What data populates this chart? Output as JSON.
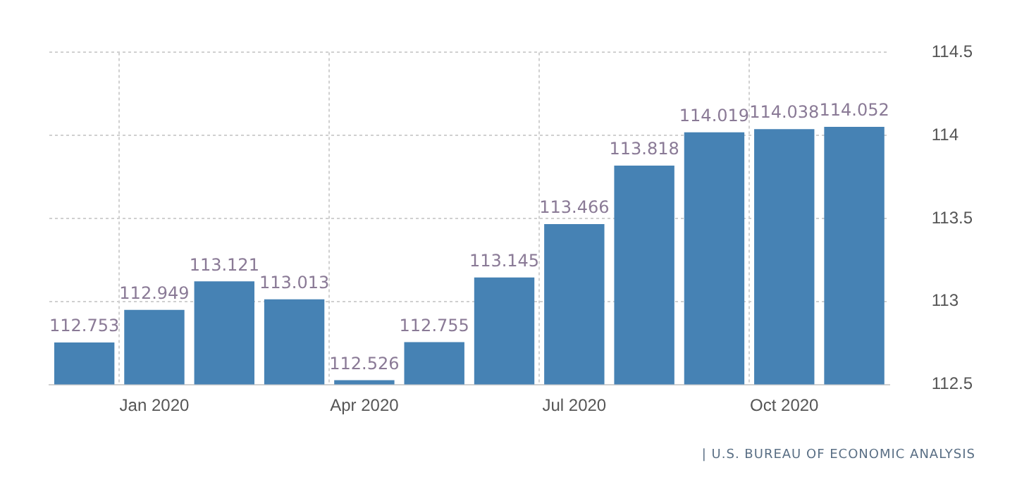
{
  "chart_data": {
    "type": "bar",
    "categories": [
      null,
      "Jan 2020",
      null,
      null,
      "Apr 2020",
      null,
      null,
      "Jul 2020",
      null,
      null,
      "Oct 2020",
      null
    ],
    "values": [
      112.753,
      112.949,
      113.121,
      113.013,
      112.526,
      112.755,
      113.145,
      113.466,
      113.818,
      114.019,
      114.038,
      114.052
    ],
    "color": "#4682b4",
    "ylim": [
      112.5,
      114.5
    ],
    "yticks": [
      112.5,
      113,
      113.5,
      114,
      114.5
    ],
    "grid": true,
    "data_labels": true,
    "legend": false,
    "annotations": [
      "| U.S. BUREAU OF ECONOMIC ANALYSIS"
    ]
  }
}
